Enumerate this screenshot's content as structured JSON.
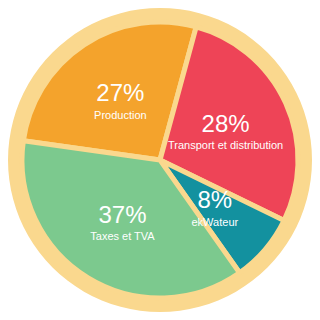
{
  "chart_data": {
    "type": "pie",
    "categories": [
      "Production",
      "Transport et distribution",
      "ekWateur",
      "Taxes et TVA"
    ],
    "values": [
      27,
      28,
      8,
      37
    ],
    "value_labels": [
      "27%",
      "28%",
      "8%",
      "37%"
    ],
    "colors": [
      "#f4a32c",
      "#ee4457",
      "#13919f",
      "#7cc98e"
    ],
    "data_labels": true
  }
}
